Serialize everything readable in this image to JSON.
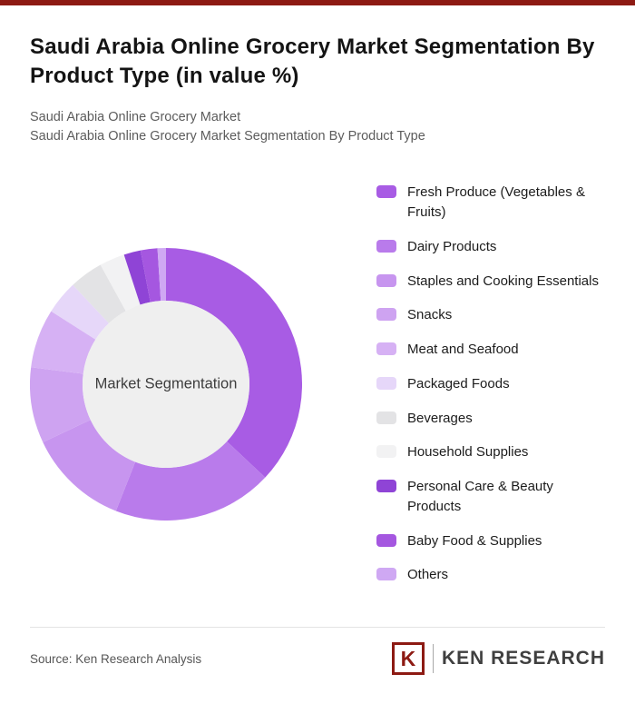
{
  "page": {
    "accent_color": "#8D1A13",
    "title": "Saudi Arabia Online Grocery Market Segmentation By Product Type (in value %)",
    "subtitle_line1": "Saudi Arabia Online Grocery Market",
    "subtitle_line2": "Saudi Arabia Online Grocery Market Segmentation By Product Type",
    "source": "Source: Ken Research Analysis"
  },
  "logo": {
    "mark": "K",
    "text": "KEN RESEARCH"
  },
  "chart_data": {
    "type": "pie",
    "donut": true,
    "center_label": "Market Segmentation",
    "center_color": "#EFEFEF",
    "legend_position": "right",
    "series": [
      {
        "name": "Fresh Produce (Vegetables & Fruits)",
        "value": 37,
        "color": "#A85CE4"
      },
      {
        "name": "Dairy Products",
        "value": 19,
        "color": "#B97BEB"
      },
      {
        "name": "Staples and Cooking Essentials",
        "value": 12,
        "color": "#C795EF"
      },
      {
        "name": "Snacks",
        "value": 9,
        "color": "#CEA3F1"
      },
      {
        "name": "Meat and Seafood",
        "value": 7,
        "color": "#D6B1F4"
      },
      {
        "name": "Packaged Foods",
        "value": 4,
        "color": "#E6D7F9"
      },
      {
        "name": "Beverages",
        "value": 4,
        "color": "#E3E3E5"
      },
      {
        "name": "Household Supplies",
        "value": 3,
        "color": "#F2F2F3"
      },
      {
        "name": "Personal Care & Beauty Products",
        "value": 2,
        "color": "#8F44D6"
      },
      {
        "name": "Baby Food & Supplies",
        "value": 2,
        "color": "#A557E0"
      },
      {
        "name": "Others",
        "value": 1,
        "color": "#CFA8F3"
      }
    ]
  }
}
